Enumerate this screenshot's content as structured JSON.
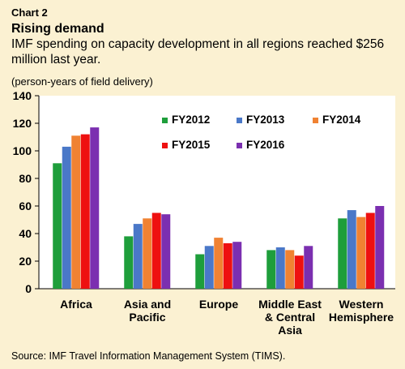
{
  "header": {
    "chart_label": "Chart 2",
    "title": "Rising demand",
    "subtitle": "IMF spending on capacity development in all regions reached $256 million last year."
  },
  "unit_note": "(person-years of field delivery)",
  "source": "Source: IMF Travel Information Management System (TIMS).",
  "colors": {
    "background": "#fbf1d2",
    "plot_background": "#ffffff",
    "FY2012": "#1e9e3b",
    "FY2013": "#4a78c8",
    "FY2014": "#f08232",
    "FY2015": "#ee1010",
    "FY2016": "#7b2fb0"
  },
  "chart_data": {
    "type": "bar",
    "title": "Rising demand",
    "subtitle": "IMF spending on capacity development in all regions reached $256 million last year.",
    "ylabel": "(person-years of field delivery)",
    "xlabel": "",
    "ylim": [
      0,
      140
    ],
    "yticks": [
      0,
      20,
      40,
      60,
      80,
      100,
      120,
      140
    ],
    "grid": false,
    "legend_position": "top-right",
    "categories": [
      [
        "Africa"
      ],
      [
        "Asia and",
        "Pacific"
      ],
      [
        "Europe"
      ],
      [
        "Middle East",
        "& Central",
        "Asia"
      ],
      [
        "Western",
        "Hemisphere"
      ]
    ],
    "series": [
      {
        "name": "FY2012",
        "values": [
          91,
          38,
          25,
          28,
          51
        ]
      },
      {
        "name": "FY2013",
        "values": [
          103,
          47,
          31,
          30,
          57
        ]
      },
      {
        "name": "FY2014",
        "values": [
          111,
          51,
          37,
          28,
          52
        ]
      },
      {
        "name": "FY2015",
        "values": [
          112,
          55,
          33,
          24,
          55
        ]
      },
      {
        "name": "FY2016",
        "values": [
          117,
          54,
          34,
          31,
          60
        ]
      }
    ]
  }
}
